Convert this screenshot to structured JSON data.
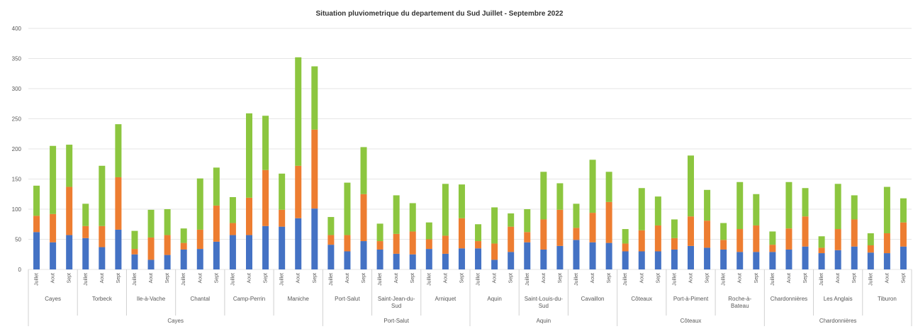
{
  "chart_data": {
    "type": "bar",
    "stacked": true,
    "title": "Situation pluviometrique du departement du Sud Juillet - Septembre 2022",
    "ylim": [
      0,
      400
    ],
    "yticks": [
      0,
      50,
      100,
      150,
      200,
      250,
      300,
      350,
      400
    ],
    "grid": true,
    "legend": "none",
    "months": [
      "Juillet",
      "Aout",
      "Sept"
    ],
    "colors": [
      "#4472c4",
      "#ed7d31",
      "#8cc63f"
    ],
    "groups": [
      {
        "label": "Cayes",
        "communes": [
          {
            "label": "Cayes",
            "bars": [
              [
                62,
                27,
                50
              ],
              [
                45,
                47,
                113
              ],
              [
                57,
                80,
                70
              ]
            ]
          },
          {
            "label": "Torbeck",
            "bars": [
              [
                52,
                20,
                37
              ],
              [
                37,
                35,
                100
              ],
              [
                66,
                87,
                88
              ]
            ]
          },
          {
            "label": "Ile-à-Vache",
            "bars": [
              [
                25,
                9,
                30
              ],
              [
                16,
                37,
                46
              ],
              [
                24,
                33,
                43
              ]
            ]
          },
          {
            "label": "Chantal",
            "bars": [
              [
                33,
                11,
                24
              ],
              [
                34,
                32,
                85
              ],
              [
                46,
                60,
                63
              ]
            ]
          },
          {
            "label": "Camp-Perrin",
            "bars": [
              [
                57,
                20,
                43
              ],
              [
                57,
                62,
                140
              ],
              [
                72,
                93,
                90
              ]
            ]
          },
          {
            "label": "Maniche",
            "bars": [
              [
                71,
                28,
                60
              ],
              [
                85,
                87,
                180
              ],
              [
                101,
                131,
                105
              ]
            ]
          }
        ]
      },
      {
        "label": "Port-Salut",
        "communes": [
          {
            "label": "Port-Salut",
            "bars": [
              [
                41,
                16,
                30
              ],
              [
                30,
                27,
                87
              ],
              [
                47,
                78,
                78
              ]
            ]
          },
          {
            "label": "Saint-Jean-du-\nSud",
            "bars": [
              [
                33,
                14,
                29
              ],
              [
                26,
                33,
                64
              ],
              [
                25,
                38,
                47
              ]
            ]
          },
          {
            "label": "Arniquet",
            "bars": [
              [
                34,
                16,
                28
              ],
              [
                26,
                30,
                86
              ],
              [
                35,
                50,
                56
              ]
            ]
          }
        ]
      },
      {
        "label": "Aquin",
        "communes": [
          {
            "label": "Aquin",
            "bars": [
              [
                35,
                12,
                28
              ],
              [
                16,
                27,
                60
              ],
              [
                29,
                42,
                22
              ]
            ]
          },
          {
            "label": "Saint-Louis-du-\nSud",
            "bars": [
              [
                45,
                17,
                38
              ],
              [
                33,
                50,
                79
              ],
              [
                39,
                60,
                44
              ]
            ]
          },
          {
            "label": "Cavaillon",
            "bars": [
              [
                49,
                20,
                40
              ],
              [
                45,
                49,
                88
              ],
              [
                44,
                68,
                50
              ]
            ]
          }
        ]
      },
      {
        "label": "Côteaux",
        "communes": [
          {
            "label": "Côteaux",
            "bars": [
              [
                30,
                13,
                24
              ],
              [
                30,
                35,
                70
              ],
              [
                30,
                43,
                48
              ]
            ]
          },
          {
            "label": "Port-à-Piment",
            "bars": [
              [
                33,
                19,
                31
              ],
              [
                39,
                49,
                101
              ],
              [
                36,
                45,
                51
              ]
            ]
          },
          {
            "label": "Roche-à-\nBateau",
            "bars": [
              [
                33,
                16,
                28
              ],
              [
                29,
                38,
                78
              ],
              [
                29,
                44,
                52
              ]
            ]
          }
        ]
      },
      {
        "label": "Chardonnières",
        "communes": [
          {
            "label": "Chardonnières",
            "bars": [
              [
                29,
                12,
                22
              ],
              [
                33,
                35,
                77
              ],
              [
                38,
                50,
                47
              ]
            ]
          },
          {
            "label": "Les Anglais",
            "bars": [
              [
                27,
                9,
                19
              ],
              [
                32,
                35,
                75
              ],
              [
                38,
                45,
                40
              ]
            ]
          },
          {
            "label": "Tiburon",
            "bars": [
              [
                28,
                12,
                20
              ],
              [
                27,
                33,
                77
              ],
              [
                38,
                40,
                40
              ]
            ]
          }
        ]
      }
    ]
  }
}
